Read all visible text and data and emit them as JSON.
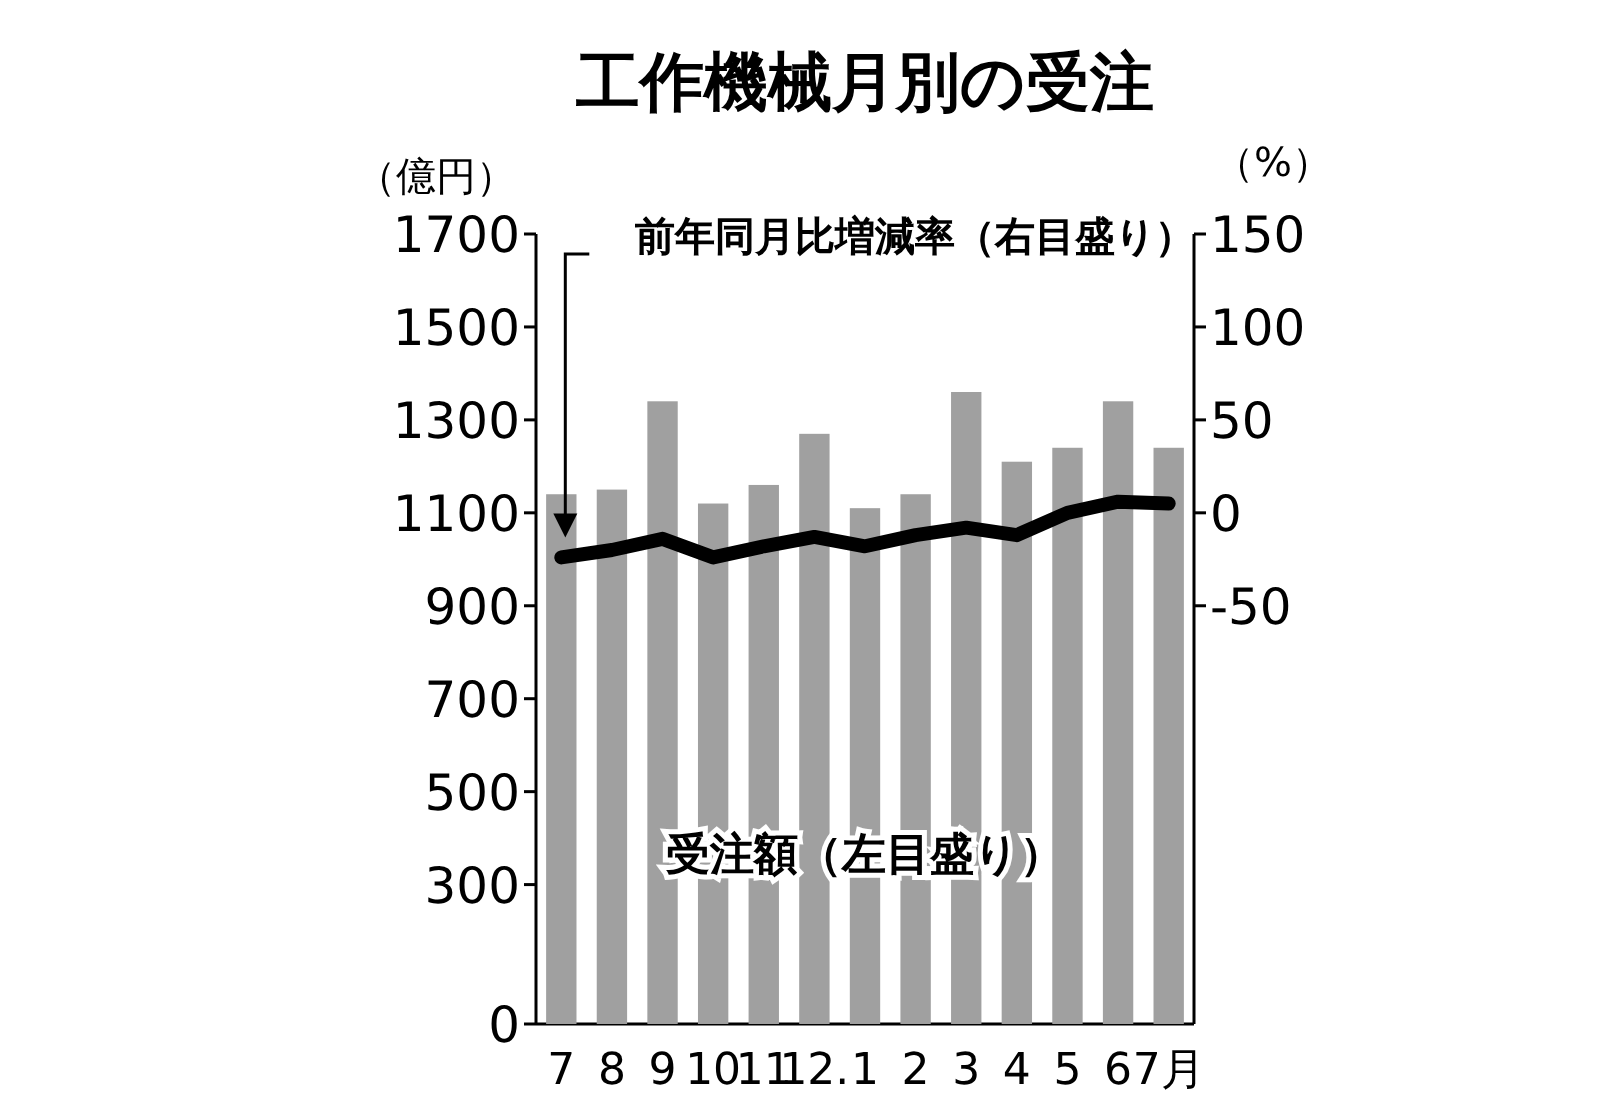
{
  "chart_data": {
    "type": "bar",
    "title": "工作機械月別の受注",
    "ylabel": "（億円）",
    "y2label": "（%）",
    "categories": [
      "7",
      "8",
      "9",
      "10",
      "11",
      "12.",
      "1",
      "2",
      "3",
      "4",
      "5",
      "6",
      "7月"
    ],
    "series": [
      {
        "name": "受注額（左目盛り）",
        "color": "#a0a0a0",
        "values": [
          1140,
          1150,
          1340,
          1120,
          1160,
          1270,
          1110,
          1140,
          1360,
          1210,
          1240,
          1340,
          1240
        ]
      },
      {
        "name": "前年同月比増減率（右目盛り）",
        "type": "line",
        "axis": "y2",
        "color": "#000000",
        "values": [
          -24,
          -20,
          -14,
          -24,
          -18,
          -13,
          -18,
          -12,
          -8,
          -12,
          0,
          6,
          5
        ]
      }
    ],
    "ylim": [
      0,
      1700
    ],
    "yticks": [
      0,
      300,
      500,
      700,
      900,
      1100,
      1300,
      1500,
      1700
    ],
    "y2lim": [
      -275,
      150
    ],
    "y2ticks": [
      -50,
      0,
      50,
      100,
      150
    ],
    "marker": "none",
    "line_style": "solid"
  }
}
